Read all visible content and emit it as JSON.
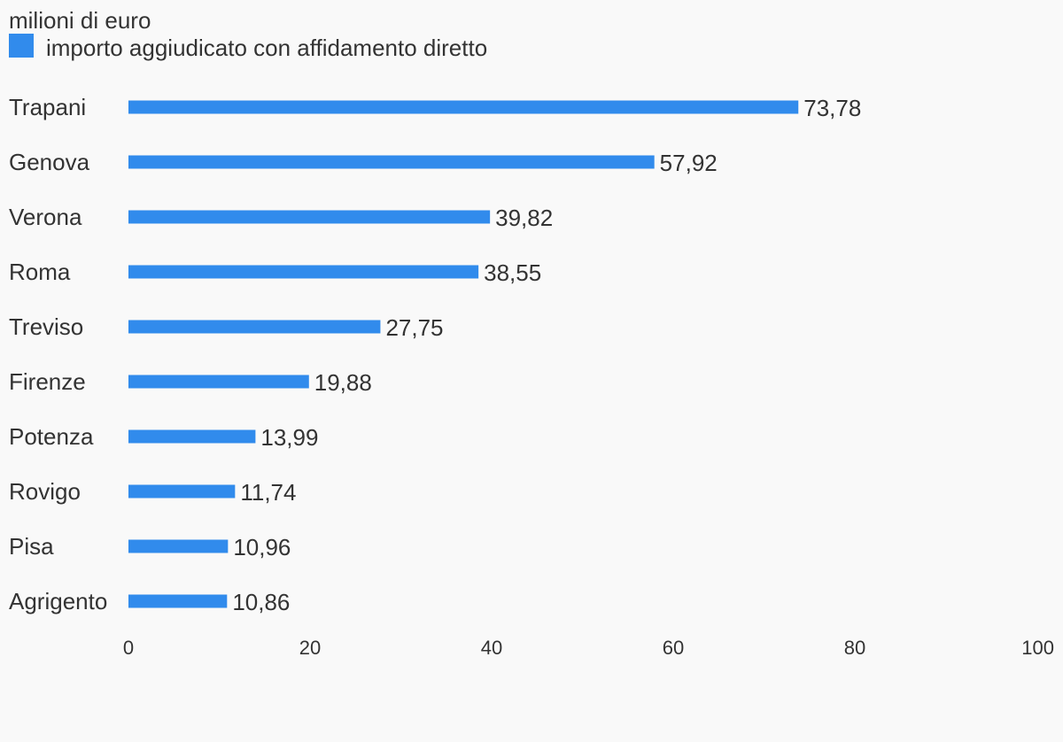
{
  "chart_data": {
    "type": "bar",
    "orientation": "horizontal",
    "unit_label": "milioni di euro",
    "title": "",
    "xlabel": "",
    "ylabel": "",
    "categories": [
      "Trapani",
      "Genova",
      "Verona",
      "Roma",
      "Treviso",
      "Firenze",
      "Potenza",
      "Rovigo",
      "Pisa",
      "Agrigento"
    ],
    "series": [
      {
        "name": "importo aggiudicato con affidamento diretto",
        "color": "#318bec",
        "values": [
          73.78,
          57.92,
          39.82,
          38.55,
          27.75,
          19.88,
          13.99,
          11.74,
          10.96,
          10.86
        ],
        "value_labels": [
          "73,78",
          "57,92",
          "39,82",
          "38,55",
          "27,75",
          "19,88",
          "13,99",
          "11,74",
          "10,96",
          "10,86"
        ]
      }
    ],
    "xlim": [
      0,
      100
    ],
    "x_ticks": [
      0,
      20,
      40,
      60,
      80,
      100
    ],
    "x_tick_labels": [
      "0",
      "20",
      "40",
      "60",
      "80",
      "100"
    ],
    "grid": false,
    "legend_position": "top-left"
  }
}
